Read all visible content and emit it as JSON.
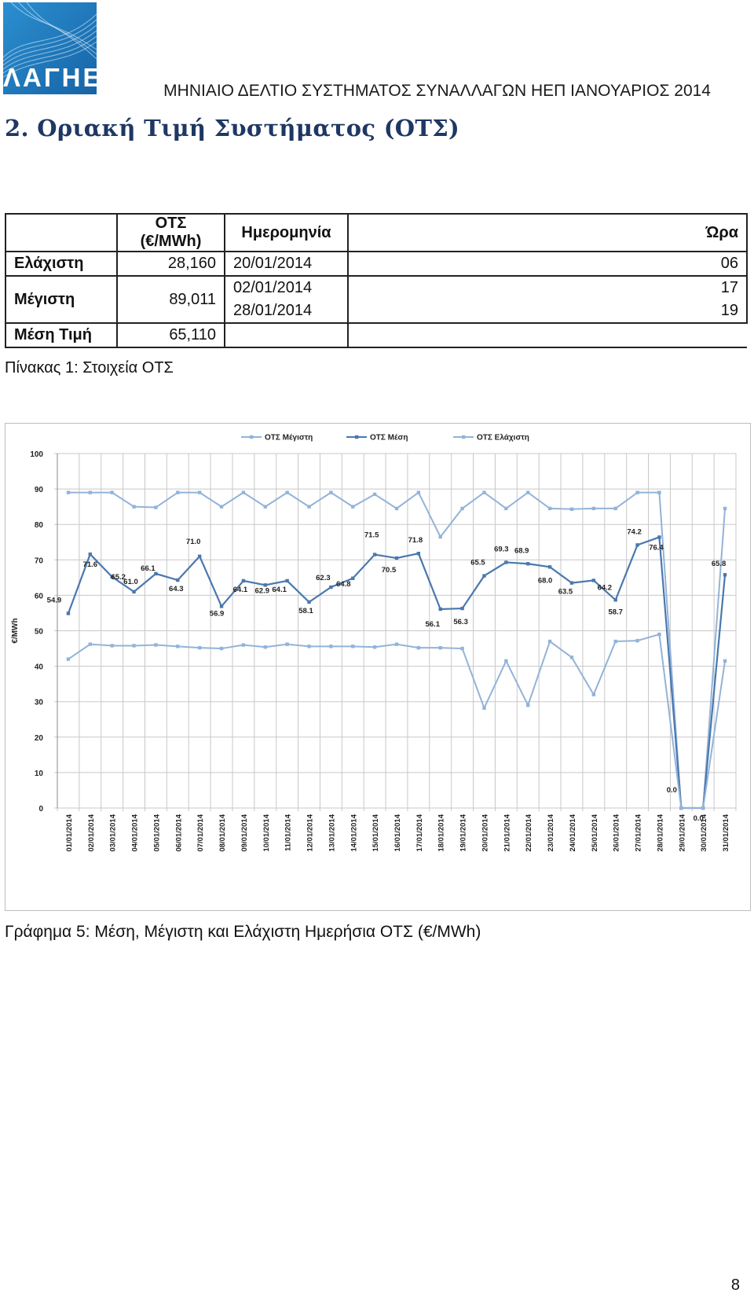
{
  "header": {
    "logo_text": "ΛΑΓΗΕ",
    "title": "ΜΗΝΙΑΙΟ ΔΕΛΤΙΟ ΣΥΣΤΗΜΑΤΟΣ ΣΥΝΑΛΛΑΓΩΝ ΗΕΠ ΙΑΝΟΥΑΡΙΟΣ 2014"
  },
  "section_title": "2.  Οριακή Τιμή Συστήματος (ΟΤΣ)",
  "stats_table": {
    "headers": {
      "ots_line1": "ΟΤΣ",
      "ots_line2": "(€/MWh)",
      "date": "Ημερομηνία",
      "hour": "Ώρα"
    },
    "rows": [
      {
        "label": "Ελάχιστη",
        "value": "28,160",
        "dates": [
          "20/01/2014"
        ],
        "hours": [
          "06"
        ]
      },
      {
        "label": "Μέγιστη",
        "value": "89,011",
        "dates": [
          "02/01/2014",
          "28/01/2014"
        ],
        "hours": [
          "17",
          "19"
        ]
      },
      {
        "label": "Μέση Τιμή",
        "value": "65,110",
        "dates": [],
        "hours": []
      }
    ],
    "caption": "Πίνακας 1: Στοιχεία ΟΤΣ"
  },
  "chart_data": {
    "type": "line",
    "title": "",
    "ylabel": "€/MWh",
    "xlabel": "",
    "ylim": [
      0,
      100
    ],
    "yticks": [
      0,
      10,
      20,
      30,
      40,
      50,
      60,
      70,
      80,
      90,
      100
    ],
    "grid": true,
    "legend_position": "top",
    "categories": [
      "01/01/2014",
      "02/01/2014",
      "03/01/2014",
      "04/01/2014",
      "05/01/2014",
      "06/01/2014",
      "07/01/2014",
      "08/01/2014",
      "09/01/2014",
      "10/01/2014",
      "11/01/2014",
      "12/01/2014",
      "13/01/2014",
      "14/01/2014",
      "15/01/2014",
      "16/01/2014",
      "17/01/2014",
      "18/01/2014",
      "19/01/2014",
      "20/01/2014",
      "21/01/2014",
      "22/01/2014",
      "23/01/2014",
      "24/01/2014",
      "25/01/2014",
      "26/01/2014",
      "27/01/2014",
      "28/01/2014",
      "29/01/2014",
      "30/01/2014",
      "31/01/2014"
    ],
    "series": [
      {
        "name": "ΟΤΣ Μέγιστη",
        "color": "#93b3d8",
        "labels": false,
        "values": [
          89.0,
          89.0,
          89.0,
          85.0,
          84.8,
          89.0,
          89.0,
          85.0,
          89.0,
          85.0,
          89.0,
          85.0,
          89.0,
          85.0,
          88.5,
          84.5,
          89.0,
          76.5,
          84.5,
          89.0,
          84.5,
          89.0,
          84.5,
          84.3,
          84.5,
          84.5,
          89.0,
          89.0,
          0.0,
          0.0,
          84.5
        ]
      },
      {
        "name": "ΟΤΣ Μέση",
        "color": "#4a78ad",
        "labels": true,
        "values": [
          54.9,
          71.6,
          65.2,
          61.0,
          66.1,
          64.3,
          71.0,
          56.9,
          64.1,
          62.9,
          64.1,
          58.1,
          62.3,
          64.8,
          71.5,
          70.5,
          71.8,
          56.1,
          56.3,
          65.5,
          69.3,
          68.9,
          68.0,
          63.5,
          64.2,
          58.7,
          74.2,
          76.4,
          0.0,
          0.0,
          65.8
        ],
        "label_text": [
          "54.9",
          "71.6",
          "65.2",
          "61.0",
          "66.1",
          "64.3",
          "71.0",
          "56.9",
          "64.1",
          "62.9",
          "64.1",
          "58.1",
          "62.3",
          "64.8",
          "71.5",
          "70.5",
          "71.8",
          "56.1",
          "56.3",
          "65.5",
          "69.3",
          "68.9",
          "68.0",
          "63.5",
          "64.2",
          "58.7",
          "74.2",
          "76.4",
          "0.0",
          "0.0",
          "65.8"
        ]
      },
      {
        "name": "ΟΤΣ Ελάχιστη",
        "color": "#93b3d8",
        "labels": false,
        "values": [
          42.0,
          46.2,
          45.8,
          45.8,
          46.0,
          45.6,
          45.2,
          45.0,
          46.0,
          45.4,
          46.2,
          45.6,
          45.6,
          45.6,
          45.4,
          46.2,
          45.2,
          45.2,
          45.0,
          28.2,
          41.5,
          29.0,
          47.0,
          42.5,
          32.0,
          47.0,
          47.2,
          49.0,
          0.0,
          0.0,
          41.5
        ]
      }
    ]
  },
  "chart_caption": "Γράφημα 5: Μέση, Μέγιστη και Ελάχιστη Ημερήσια ΟΤΣ (€/MWh)",
  "page_number": "8"
}
